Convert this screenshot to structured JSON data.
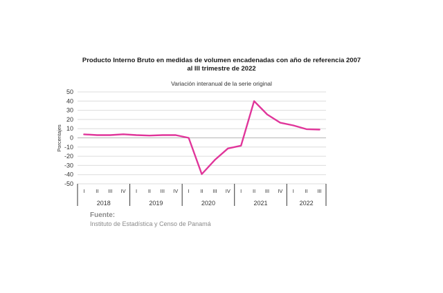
{
  "chart_data": {
    "type": "line",
    "title": "Producto Interno Bruto en medidas de volumen encadenadas con año de referencia 2007",
    "title_line2": "al III trimestre de 2022",
    "subtitle": "Variación interanual de la serie original",
    "ylabel": "Porcentajes",
    "ylim": [
      -50,
      50
    ],
    "yticks": [
      50,
      40,
      30,
      20,
      10,
      0,
      -10,
      -20,
      -30,
      -40,
      -50
    ],
    "grid": true,
    "line_color": "#e0359a",
    "years": [
      {
        "label": "2018",
        "quarters": [
          "I",
          "II",
          "III",
          "IV"
        ]
      },
      {
        "label": "2019",
        "quarters": [
          "I",
          "II",
          "III",
          "IV"
        ]
      },
      {
        "label": "2020",
        "quarters": [
          "I",
          "II",
          "III",
          "IV"
        ]
      },
      {
        "label": "2021",
        "quarters": [
          "I",
          "II",
          "III",
          "IV"
        ]
      },
      {
        "label": "2022",
        "quarters": [
          "I",
          "II",
          "III"
        ]
      }
    ],
    "values": [
      3.8,
      3.0,
      3.0,
      3.9,
      3.0,
      2.5,
      3.0,
      3.0,
      0.0,
      -39.5,
      -24.0,
      -11.5,
      -8.5,
      40.0,
      25.5,
      16.5,
      13.5,
      9.5,
      9.0
    ]
  },
  "source": {
    "label": "Fuente:",
    "text": "Instituto de Estadística y Censo de Panamá"
  }
}
